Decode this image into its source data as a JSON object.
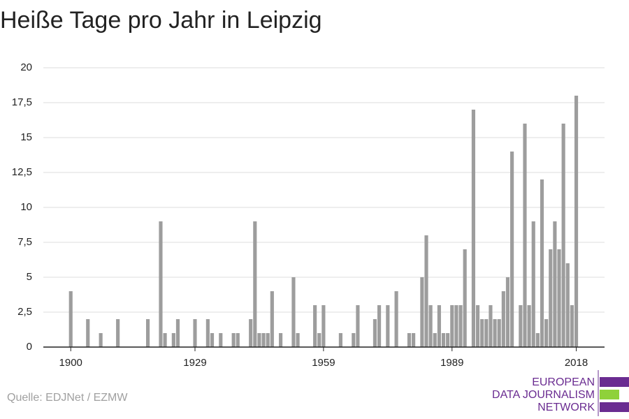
{
  "chart_data": {
    "type": "bar",
    "title": "Heiße Tage pro Jahr in Leipzig",
    "source": "Quelle: EDJNet / EZMW",
    "logo": [
      "EUROPEAN",
      "DATA JOURNALISM",
      "NETWORK"
    ],
    "color": "#9d9d9d",
    "x": [
      1900,
      1901,
      1902,
      1903,
      1904,
      1905,
      1906,
      1907,
      1908,
      1909,
      1910,
      1911,
      1912,
      1913,
      1914,
      1915,
      1916,
      1917,
      1918,
      1919,
      1920,
      1921,
      1922,
      1923,
      1924,
      1925,
      1926,
      1927,
      1928,
      1929,
      1930,
      1931,
      1932,
      1933,
      1934,
      1935,
      1936,
      1937,
      1938,
      1939,
      1940,
      1941,
      1942,
      1943,
      1944,
      1945,
      1946,
      1947,
      1948,
      1949,
      1950,
      1951,
      1952,
      1953,
      1954,
      1955,
      1956,
      1957,
      1958,
      1959,
      1960,
      1961,
      1962,
      1963,
      1964,
      1965,
      1966,
      1967,
      1968,
      1969,
      1970,
      1971,
      1972,
      1973,
      1974,
      1975,
      1976,
      1977,
      1978,
      1979,
      1980,
      1981,
      1982,
      1983,
      1984,
      1985,
      1986,
      1987,
      1988,
      1989,
      1990,
      1991,
      1992,
      1993,
      1994,
      1995,
      1996,
      1997,
      1998,
      1999,
      2000,
      2001,
      2002,
      2003,
      2004,
      2005,
      2006,
      2007,
      2008,
      2009,
      2010,
      2011,
      2012,
      2013,
      2014,
      2015,
      2016,
      2017,
      2018
    ],
    "values": [
      4,
      0,
      0,
      0,
      2,
      0,
      0,
      1,
      0,
      0,
      0,
      2,
      0,
      0,
      0,
      0,
      0,
      0,
      2,
      0,
      0,
      9,
      1,
      0,
      1,
      2,
      0,
      0,
      0,
      2,
      0,
      0,
      2,
      1,
      0,
      1,
      0,
      0,
      1,
      1,
      0,
      0,
      2,
      9,
      1,
      1,
      1,
      4,
      0,
      1,
      0,
      0,
      5,
      1,
      0,
      0,
      0,
      3,
      1,
      3,
      0,
      0,
      0,
      1,
      0,
      0,
      1,
      3,
      0,
      0,
      0,
      2,
      3,
      0,
      3,
      0,
      4,
      0,
      0,
      1,
      1,
      0,
      5,
      8,
      3,
      1,
      3,
      1,
      1,
      3,
      3,
      3,
      7,
      0,
      17,
      3,
      2,
      2,
      3,
      2,
      2,
      4,
      5,
      14,
      0,
      3,
      16,
      3,
      9,
      1,
      12,
      2,
      7,
      9,
      7,
      16,
      6,
      3,
      18
    ],
    "xlim": [
      1893.6,
      2024.6
    ],
    "xticks": [
      1900,
      1929,
      1959,
      1989,
      2018
    ],
    "ylim": [
      0,
      20
    ],
    "yticks": [
      0,
      {
        "value": 2.5,
        "label": "2,5"
      },
      5,
      {
        "value": 7.5,
        "label": "7,5"
      },
      10,
      {
        "value": 12.5,
        "label": "12,5"
      },
      15,
      {
        "value": 17.5,
        "label": "17,5"
      },
      20
    ],
    "grid": true
  }
}
